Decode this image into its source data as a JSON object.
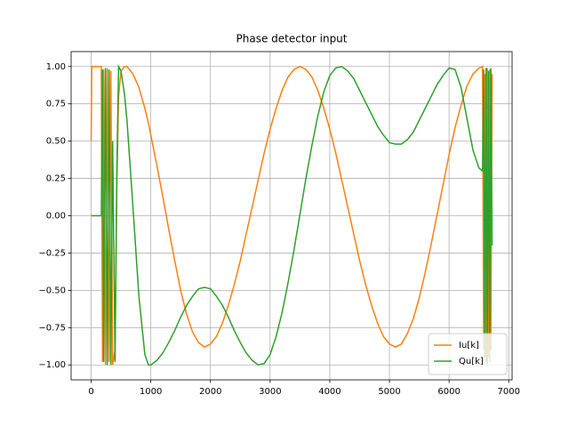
{
  "chart_data": {
    "type": "line",
    "title": "Phase detector input",
    "x": [
      0,
      10,
      170,
      190,
      210,
      240,
      270,
      300,
      330,
      360,
      400,
      430,
      460,
      500,
      560,
      600,
      700,
      800,
      900,
      960,
      1000,
      1100,
      1200,
      1300,
      1400,
      1500,
      1600,
      1700,
      1800,
      1900,
      2000,
      2100,
      2200,
      2300,
      2400,
      2500,
      2600,
      2700,
      2800,
      2900,
      3000,
      3100,
      3200,
      3300,
      3400,
      3500,
      3600,
      3700,
      3800,
      3900,
      4000,
      4100,
      4200,
      4300,
      4400,
      4500,
      4600,
      4700,
      4800,
      4900,
      5000,
      5100,
      5200,
      5300,
      5400,
      5500,
      5600,
      5700,
      5800,
      5900,
      6000,
      6100,
      6200,
      6300,
      6400,
      6500,
      6560,
      6580,
      6600,
      6620,
      6640,
      6660,
      6680,
      6700,
      6720
    ],
    "series": [
      {
        "name": "Iu[k]",
        "color": "#ff7f0e",
        "values": [
          0.5,
          1,
          1,
          -0.98,
          0.98,
          -1,
          0.99,
          -0.98,
          0.97,
          -1,
          -0.9,
          0.2,
          0.8,
          0.97,
          1,
          1,
          0.95,
          0.86,
          0.72,
          0.62,
          0.54,
          0.34,
          0.13,
          -0.09,
          -0.3,
          -0.5,
          -0.66,
          -0.78,
          -0.85,
          -0.88,
          -0.86,
          -0.81,
          -0.72,
          -0.6,
          -0.46,
          -0.3,
          -0.12,
          0.06,
          0.24,
          0.42,
          0.58,
          0.72,
          0.84,
          0.93,
          0.98,
          1,
          0.98,
          0.93,
          0.84,
          0.72,
          0.58,
          0.42,
          0.24,
          0.06,
          -0.12,
          -0.3,
          -0.46,
          -0.6,
          -0.72,
          -0.81,
          -0.86,
          -0.88,
          -0.86,
          -0.79,
          -0.69,
          -0.55,
          -0.38,
          -0.19,
          0.01,
          0.21,
          0.41,
          0.59,
          0.74,
          0.87,
          0.95,
          0.99,
          1,
          -0.9,
          0.95,
          -0.98,
          0.99,
          -0.95,
          0.98,
          -0.9,
          0.95
        ]
      },
      {
        "name": "Qu[k]",
        "color": "#2ca02c",
        "values": [
          0,
          0,
          0,
          0.98,
          -0.98,
          0.99,
          -1,
          0.98,
          -1,
          0.5,
          -0.98,
          0.3,
          1,
          0.97,
          0.81,
          0.64,
          0.06,
          -0.54,
          -0.93,
          -1,
          -1,
          -0.97,
          -0.92,
          -0.85,
          -0.77,
          -0.68,
          -0.6,
          -0.54,
          -0.49,
          -0.48,
          -0.49,
          -0.54,
          -0.6,
          -0.68,
          -0.77,
          -0.85,
          -0.92,
          -0.97,
          -1,
          -0.99,
          -0.93,
          -0.81,
          -0.65,
          -0.45,
          -0.23,
          0.01,
          0.25,
          0.47,
          0.67,
          0.83,
          0.94,
          0.99,
          1,
          0.97,
          0.92,
          0.84,
          0.76,
          0.68,
          0.6,
          0.54,
          0.49,
          0.48,
          0.48,
          0.51,
          0.56,
          0.64,
          0.72,
          0.8,
          0.88,
          0.94,
          0.99,
          0.98,
          0.86,
          0.65,
          0.44,
          0.32,
          0.3,
          0.98,
          -0.95,
          0.99,
          -1,
          0.97,
          -0.98,
          0.99,
          -0.2
        ]
      }
    ],
    "xlim": [
      -336,
      7056
    ],
    "xticks": [
      0,
      1000,
      2000,
      3000,
      4000,
      5000,
      6000,
      7000
    ],
    "ylim": [
      -1.1,
      1.1
    ],
    "yticks": [
      {
        "value": -1,
        "label": "−1.00"
      },
      {
        "value": -0.75,
        "label": "−0.75"
      },
      {
        "value": -0.5,
        "label": "−0.50"
      },
      {
        "value": -0.25,
        "label": "−0.25"
      },
      {
        "value": 0,
        "label": "0.00"
      },
      {
        "value": 0.25,
        "label": "0.25"
      },
      {
        "value": 0.5,
        "label": "0.50"
      },
      {
        "value": 0.75,
        "label": "0.75"
      },
      {
        "value": 1,
        "label": "1.00"
      }
    ],
    "grid": true,
    "legend": "lower-right"
  }
}
